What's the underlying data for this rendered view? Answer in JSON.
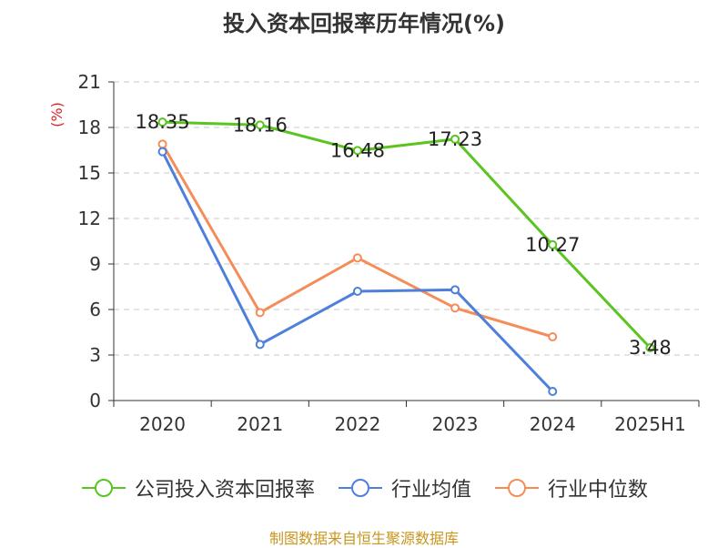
{
  "title": "投入资本回报率历年情况(%)",
  "source": "制图数据来自恒生聚源数据库",
  "chart_data": {
    "type": "line",
    "title": "投入资本回报率历年情况(%)",
    "ylabel": "(%)",
    "xlabel": "",
    "categories": [
      "2020",
      "2021",
      "2022",
      "2023",
      "2024",
      "2025H1"
    ],
    "ylim": [
      0,
      21
    ],
    "yticks": [
      0,
      3,
      6,
      9,
      12,
      15,
      18,
      21
    ],
    "grid": "horizontal-dashed",
    "legend": "bottom",
    "series": [
      {
        "name": "公司投入资本回报率",
        "color": "#5ac421",
        "values": [
          18.35,
          18.16,
          16.48,
          17.23,
          10.27,
          3.48
        ],
        "labels": [
          "18.35",
          "18.16",
          "16.48",
          "17.23",
          "10.27",
          "3.48"
        ]
      },
      {
        "name": "行业均值",
        "color": "#4e7fdb",
        "values": [
          16.4,
          3.7,
          7.2,
          7.3,
          0.6,
          null
        ]
      },
      {
        "name": "行业中位数",
        "color": "#f58d58",
        "values": [
          16.9,
          5.8,
          9.4,
          6.1,
          4.2,
          null
        ]
      }
    ]
  }
}
